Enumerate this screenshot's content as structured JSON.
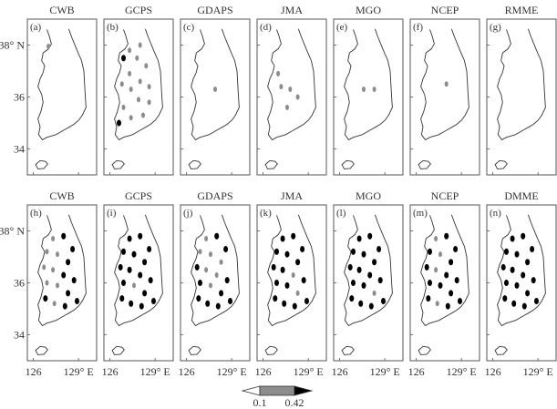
{
  "chart_data": {
    "type": "scatter",
    "description_units": "station correlation map panels over the Korean Peninsula",
    "rows": [
      {
        "panels": [
          {
            "tag": "(a)",
            "model": "CWB",
            "points": [
              {
                "lon": 127.0,
                "lat": 37.95,
                "cls": 1
              }
            ]
          },
          {
            "tag": "(b)",
            "model": "GCPS",
            "points": [
              {
                "lon": 127.8,
                "lat": 37.5,
                "cls": 1
              },
              {
                "lon": 128.4,
                "lat": 37.2,
                "cls": 1
              },
              {
                "lon": 126.9,
                "lat": 37.5,
                "cls": 2
              },
              {
                "lon": 127.3,
                "lat": 36.9,
                "cls": 1
              },
              {
                "lon": 128.0,
                "lat": 36.6,
                "cls": 1
              },
              {
                "lon": 128.6,
                "lat": 36.4,
                "cls": 1
              },
              {
                "lon": 126.8,
                "lat": 36.5,
                "cls": 1
              },
              {
                "lon": 127.4,
                "lat": 36.3,
                "cls": 1
              },
              {
                "lon": 127.9,
                "lat": 35.9,
                "cls": 1
              },
              {
                "lon": 128.6,
                "lat": 35.8,
                "cls": 1
              },
              {
                "lon": 126.9,
                "lat": 35.6,
                "cls": 1
              },
              {
                "lon": 127.4,
                "lat": 35.2,
                "cls": 1
              },
              {
                "lon": 128.2,
                "lat": 35.3,
                "cls": 1
              },
              {
                "lon": 126.6,
                "lat": 35.0,
                "cls": 2
              },
              {
                "lon": 127.3,
                "lat": 37.8,
                "cls": 1
              },
              {
                "lon": 128.0,
                "lat": 38.0,
                "cls": 1
              }
            ]
          },
          {
            "tag": "(c)",
            "model": "GDAPS",
            "points": [
              {
                "lon": 127.9,
                "lat": 36.3,
                "cls": 1
              }
            ]
          },
          {
            "tag": "(d)",
            "model": "JMA",
            "points": [
              {
                "lon": 127.2,
                "lat": 36.4,
                "cls": 1
              },
              {
                "lon": 127.8,
                "lat": 36.3,
                "cls": 1
              },
              {
                "lon": 128.3,
                "lat": 36.0,
                "cls": 1
              },
              {
                "lon": 127.6,
                "lat": 35.6,
                "cls": 1
              },
              {
                "lon": 127.0,
                "lat": 36.9,
                "cls": 1
              }
            ]
          },
          {
            "tag": "(e)",
            "model": "MGO",
            "points": [
              {
                "lon": 127.6,
                "lat": 36.3,
                "cls": 1
              },
              {
                "lon": 128.3,
                "lat": 36.3,
                "cls": 1
              }
            ]
          },
          {
            "tag": "(f)",
            "model": "NCEP",
            "points": [
              {
                "lon": 128.0,
                "lat": 36.5,
                "cls": 1
              }
            ]
          },
          {
            "tag": "(g)",
            "model": "RMME",
            "points": []
          }
        ]
      },
      {
        "panels": [
          {
            "tag": "(h)",
            "model": "CWB",
            "points": [
              {
                "lon": 127.3,
                "lat": 37.7,
                "cls": 1
              },
              {
                "lon": 128.0,
                "lat": 37.8,
                "cls": 2
              },
              {
                "lon": 128.6,
                "lat": 37.3,
                "cls": 2
              },
              {
                "lon": 126.9,
                "lat": 37.2,
                "cls": 1
              },
              {
                "lon": 127.6,
                "lat": 37.1,
                "cls": 1
              },
              {
                "lon": 128.3,
                "lat": 36.8,
                "cls": 2
              },
              {
                "lon": 126.7,
                "lat": 36.6,
                "cls": 1
              },
              {
                "lon": 127.3,
                "lat": 36.5,
                "cls": 1
              },
              {
                "lon": 128.0,
                "lat": 36.3,
                "cls": 2
              },
              {
                "lon": 128.7,
                "lat": 36.1,
                "cls": 2
              },
              {
                "lon": 126.9,
                "lat": 36.0,
                "cls": 1
              },
              {
                "lon": 127.6,
                "lat": 35.9,
                "cls": 1
              },
              {
                "lon": 128.3,
                "lat": 35.6,
                "cls": 2
              },
              {
                "lon": 126.8,
                "lat": 35.4,
                "cls": 2
              },
              {
                "lon": 127.4,
                "lat": 35.2,
                "cls": 1
              },
              {
                "lon": 128.1,
                "lat": 35.1,
                "cls": 2
              },
              {
                "lon": 128.9,
                "lat": 35.3,
                "cls": 2
              }
            ]
          },
          {
            "tag": "(i)",
            "model": "GCPS",
            "points": [
              {
                "lon": 127.3,
                "lat": 37.7,
                "cls": 2
              },
              {
                "lon": 128.0,
                "lat": 37.8,
                "cls": 2
              },
              {
                "lon": 128.6,
                "lat": 37.3,
                "cls": 2
              },
              {
                "lon": 126.9,
                "lat": 37.2,
                "cls": 2
              },
              {
                "lon": 127.6,
                "lat": 37.1,
                "cls": 2
              },
              {
                "lon": 128.3,
                "lat": 36.8,
                "cls": 2
              },
              {
                "lon": 126.7,
                "lat": 36.6,
                "cls": 2
              },
              {
                "lon": 127.3,
                "lat": 36.5,
                "cls": 2
              },
              {
                "lon": 128.0,
                "lat": 36.3,
                "cls": 2
              },
              {
                "lon": 128.7,
                "lat": 36.1,
                "cls": 2
              },
              {
                "lon": 126.9,
                "lat": 36.0,
                "cls": 2
              },
              {
                "lon": 127.6,
                "lat": 35.9,
                "cls": 1
              },
              {
                "lon": 128.3,
                "lat": 35.6,
                "cls": 2
              },
              {
                "lon": 126.8,
                "lat": 35.4,
                "cls": 2
              },
              {
                "lon": 127.4,
                "lat": 35.2,
                "cls": 2
              },
              {
                "lon": 128.1,
                "lat": 35.1,
                "cls": 2
              },
              {
                "lon": 128.9,
                "lat": 35.3,
                "cls": 2
              }
            ]
          },
          {
            "tag": "(j)",
            "model": "GDAPS",
            "points": [
              {
                "lon": 127.3,
                "lat": 37.7,
                "cls": 1
              },
              {
                "lon": 128.0,
                "lat": 37.8,
                "cls": 2
              },
              {
                "lon": 128.6,
                "lat": 37.3,
                "cls": 2
              },
              {
                "lon": 126.9,
                "lat": 37.2,
                "cls": 1
              },
              {
                "lon": 127.6,
                "lat": 37.1,
                "cls": 1
              },
              {
                "lon": 128.3,
                "lat": 36.8,
                "cls": 1
              },
              {
                "lon": 126.7,
                "lat": 36.6,
                "cls": 2
              },
              {
                "lon": 127.3,
                "lat": 36.5,
                "cls": 1
              },
              {
                "lon": 128.0,
                "lat": 36.3,
                "cls": 1
              },
              {
                "lon": 128.7,
                "lat": 36.1,
                "cls": 2
              },
              {
                "lon": 126.9,
                "lat": 36.0,
                "cls": 2
              },
              {
                "lon": 127.6,
                "lat": 35.9,
                "cls": 1
              },
              {
                "lon": 128.3,
                "lat": 35.6,
                "cls": 2
              },
              {
                "lon": 126.8,
                "lat": 35.4,
                "cls": 2
              },
              {
                "lon": 127.4,
                "lat": 35.2,
                "cls": 2
              },
              {
                "lon": 128.1,
                "lat": 35.1,
                "cls": 2
              },
              {
                "lon": 128.9,
                "lat": 35.3,
                "cls": 2
              }
            ]
          },
          {
            "tag": "(k)",
            "model": "JMA",
            "points": [
              {
                "lon": 127.3,
                "lat": 37.7,
                "cls": 2
              },
              {
                "lon": 128.0,
                "lat": 37.8,
                "cls": 2
              },
              {
                "lon": 128.6,
                "lat": 37.3,
                "cls": 2
              },
              {
                "lon": 126.9,
                "lat": 37.2,
                "cls": 2
              },
              {
                "lon": 127.6,
                "lat": 37.1,
                "cls": 2
              },
              {
                "lon": 128.3,
                "lat": 36.8,
                "cls": 2
              },
              {
                "lon": 126.7,
                "lat": 36.6,
                "cls": 2
              },
              {
                "lon": 127.3,
                "lat": 36.5,
                "cls": 2
              },
              {
                "lon": 128.0,
                "lat": 36.3,
                "cls": 1
              },
              {
                "lon": 128.7,
                "lat": 36.1,
                "cls": 2
              },
              {
                "lon": 126.9,
                "lat": 36.0,
                "cls": 2
              },
              {
                "lon": 127.6,
                "lat": 35.9,
                "cls": 2
              },
              {
                "lon": 128.3,
                "lat": 35.6,
                "cls": 1
              },
              {
                "lon": 126.8,
                "lat": 35.4,
                "cls": 2
              },
              {
                "lon": 127.4,
                "lat": 35.2,
                "cls": 2
              },
              {
                "lon": 128.1,
                "lat": 35.1,
                "cls": 2
              },
              {
                "lon": 128.9,
                "lat": 35.3,
                "cls": 2
              }
            ]
          },
          {
            "tag": "(l)",
            "model": "MGO",
            "points": [
              {
                "lon": 127.3,
                "lat": 37.7,
                "cls": 2
              },
              {
                "lon": 128.0,
                "lat": 37.8,
                "cls": 2
              },
              {
                "lon": 128.6,
                "lat": 37.3,
                "cls": 2
              },
              {
                "lon": 126.9,
                "lat": 37.2,
                "cls": 2
              },
              {
                "lon": 127.6,
                "lat": 37.1,
                "cls": 2
              },
              {
                "lon": 128.3,
                "lat": 36.8,
                "cls": 2
              },
              {
                "lon": 126.7,
                "lat": 36.6,
                "cls": 2
              },
              {
                "lon": 127.3,
                "lat": 36.5,
                "cls": 2
              },
              {
                "lon": 128.0,
                "lat": 36.3,
                "cls": 2
              },
              {
                "lon": 128.7,
                "lat": 36.1,
                "cls": 2
              },
              {
                "lon": 126.9,
                "lat": 36.0,
                "cls": 2
              },
              {
                "lon": 127.6,
                "lat": 35.9,
                "cls": 2
              },
              {
                "lon": 128.3,
                "lat": 35.6,
                "cls": 1
              },
              {
                "lon": 126.8,
                "lat": 35.4,
                "cls": 2
              },
              {
                "lon": 127.4,
                "lat": 35.2,
                "cls": 2
              },
              {
                "lon": 128.1,
                "lat": 35.1,
                "cls": 2
              },
              {
                "lon": 128.9,
                "lat": 35.3,
                "cls": 2
              }
            ]
          },
          {
            "tag": "(m)",
            "model": "NCEP",
            "points": [
              {
                "lon": 127.3,
                "lat": 37.7,
                "cls": 1
              },
              {
                "lon": 128.0,
                "lat": 37.8,
                "cls": 2
              },
              {
                "lon": 128.6,
                "lat": 37.3,
                "cls": 2
              },
              {
                "lon": 126.9,
                "lat": 37.2,
                "cls": 2
              },
              {
                "lon": 127.6,
                "lat": 37.1,
                "cls": 1
              },
              {
                "lon": 128.3,
                "lat": 36.8,
                "cls": 2
              },
              {
                "lon": 126.7,
                "lat": 36.6,
                "cls": 2
              },
              {
                "lon": 127.3,
                "lat": 36.5,
                "cls": 1
              },
              {
                "lon": 128.0,
                "lat": 36.3,
                "cls": 2
              },
              {
                "lon": 128.7,
                "lat": 36.1,
                "cls": 2
              },
              {
                "lon": 126.9,
                "lat": 36.0,
                "cls": 2
              },
              {
                "lon": 127.6,
                "lat": 35.9,
                "cls": 2
              },
              {
                "lon": 128.3,
                "lat": 35.6,
                "cls": 2
              },
              {
                "lon": 126.8,
                "lat": 35.4,
                "cls": 2
              },
              {
                "lon": 127.4,
                "lat": 35.2,
                "cls": 1
              },
              {
                "lon": 128.1,
                "lat": 35.1,
                "cls": 2
              },
              {
                "lon": 128.9,
                "lat": 35.3,
                "cls": 2
              }
            ]
          },
          {
            "tag": "(n)",
            "model": "DMME",
            "points": [
              {
                "lon": 127.3,
                "lat": 37.7,
                "cls": 2
              },
              {
                "lon": 128.0,
                "lat": 37.8,
                "cls": 2
              },
              {
                "lon": 128.6,
                "lat": 37.3,
                "cls": 2
              },
              {
                "lon": 126.9,
                "lat": 37.2,
                "cls": 2
              },
              {
                "lon": 127.6,
                "lat": 37.1,
                "cls": 2
              },
              {
                "lon": 128.3,
                "lat": 36.8,
                "cls": 2
              },
              {
                "lon": 126.7,
                "lat": 36.6,
                "cls": 2
              },
              {
                "lon": 127.3,
                "lat": 36.5,
                "cls": 2
              },
              {
                "lon": 128.0,
                "lat": 36.3,
                "cls": 2
              },
              {
                "lon": 128.7,
                "lat": 36.1,
                "cls": 2
              },
              {
                "lon": 126.9,
                "lat": 36.0,
                "cls": 2
              },
              {
                "lon": 127.6,
                "lat": 35.9,
                "cls": 2
              },
              {
                "lon": 128.3,
                "lat": 35.6,
                "cls": 2
              },
              {
                "lon": 126.8,
                "lat": 35.4,
                "cls": 2
              },
              {
                "lon": 127.4,
                "lat": 35.2,
                "cls": 2
              },
              {
                "lon": 128.1,
                "lat": 35.1,
                "cls": 2
              },
              {
                "lon": 128.9,
                "lat": 35.3,
                "cls": 2
              }
            ]
          }
        ]
      }
    ],
    "lat_ticks": [
      {
        "value": 38,
        "label": "38° N"
      },
      {
        "value": 36,
        "label": "36"
      },
      {
        "value": 34,
        "label": "34"
      }
    ],
    "lon_ticks": [
      {
        "value": 126,
        "label": "126"
      },
      {
        "value": 129,
        "label": "129° E"
      }
    ],
    "xlim": [
      125.6,
      130.2
    ],
    "ylim": [
      33.0,
      39.0
    ],
    "colorbar": {
      "labels": [
        "0.1",
        "0.42"
      ],
      "colors": [
        "#ffffff",
        "#8c8c8c",
        "#000000"
      ]
    },
    "grid": false
  }
}
